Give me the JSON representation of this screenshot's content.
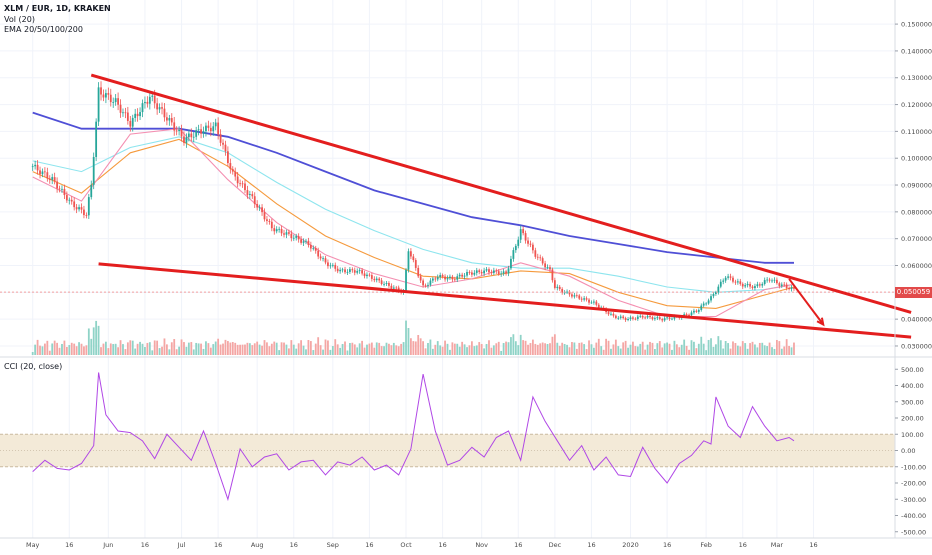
{
  "header": {
    "symbol": "XLM / EUR, 1D, KRAKEN",
    "volume_label": "Vol (20)",
    "ema_label": "EMA 20/50/100/200",
    "cci_label": "CCI (20, close)",
    "last_price": "0.050059"
  },
  "colors": {
    "up": "#26a69a",
    "down": "#ef5350",
    "trendline": "#e31e1e",
    "ema20": "#f48fb1",
    "ema50": "#f59a3d",
    "ema100": "#8ee5ee",
    "ema200": "#4f4fd6",
    "cci": "#b047e6",
    "band": "#f3ead8",
    "grid": "#f0f3fa",
    "text": "#4a4a4a"
  },
  "chart_data": [
    {
      "type": "line",
      "title": "XLM / EUR, 1D, KRAKEN",
      "x_ticks": [
        "May",
        "16",
        "Jun",
        "16",
        "Jul",
        "16",
        "Aug",
        "16",
        "Sep",
        "16",
        "Oct",
        "16",
        "Nov",
        "16",
        "Dec",
        "16",
        "2020",
        "16",
        "Feb",
        "16",
        "Mar",
        "16"
      ],
      "y_ticks": [
        "0.150000",
        "0.140000",
        "0.130000",
        "0.120000",
        "0.110000",
        "0.100000",
        "0.090000",
        "0.080000",
        "0.070000",
        "0.060000",
        "0.050000",
        "0.040000",
        "0.030000"
      ],
      "ylim": [
        0.0285,
        0.156
      ],
      "x_index_domain": [
        0,
        320
      ],
      "series": [
        {
          "name": "Close",
          "x": [
            0,
            8,
            16,
            22,
            24,
            27,
            34,
            40,
            48,
            55,
            62,
            68,
            75,
            82,
            90,
            98,
            106,
            113,
            120,
            126,
            133,
            140,
            147,
            152,
            154,
            160,
            166,
            172,
            178,
            186,
            194,
            200,
            206,
            212,
            214,
            218,
            224,
            230,
            238,
            244,
            250,
            258,
            266,
            272,
            278,
            284,
            290,
            296,
            302,
            306,
            312
          ],
          "y": [
            0.097,
            0.092,
            0.083,
            0.079,
            0.09,
            0.125,
            0.121,
            0.113,
            0.123,
            0.115,
            0.107,
            0.11,
            0.112,
            0.094,
            0.085,
            0.074,
            0.071,
            0.068,
            0.061,
            0.058,
            0.058,
            0.055,
            0.052,
            0.05,
            0.066,
            0.052,
            0.056,
            0.055,
            0.057,
            0.058,
            0.057,
            0.073,
            0.064,
            0.058,
            0.052,
            0.05,
            0.048,
            0.046,
            0.041,
            0.04,
            0.041,
            0.04,
            0.041,
            0.043,
            0.048,
            0.056,
            0.053,
            0.052,
            0.055,
            0.053,
            0.051
          ]
        },
        {
          "name": "EMA 200",
          "x": [
            0,
            20,
            40,
            60,
            80,
            100,
            120,
            140,
            160,
            180,
            200,
            220,
            240,
            260,
            280,
            300,
            312
          ],
          "y": [
            0.117,
            0.111,
            0.111,
            0.111,
            0.108,
            0.102,
            0.095,
            0.088,
            0.083,
            0.078,
            0.075,
            0.071,
            0.068,
            0.065,
            0.063,
            0.061,
            0.061
          ]
        },
        {
          "name": "EMA 100",
          "x": [
            0,
            20,
            40,
            60,
            80,
            100,
            120,
            140,
            160,
            180,
            200,
            220,
            240,
            260,
            280,
            300,
            312
          ],
          "y": [
            0.099,
            0.095,
            0.104,
            0.108,
            0.102,
            0.091,
            0.081,
            0.073,
            0.066,
            0.061,
            0.059,
            0.059,
            0.056,
            0.052,
            0.05,
            0.051,
            0.053
          ]
        },
        {
          "name": "EMA 50",
          "x": [
            0,
            20,
            40,
            60,
            80,
            100,
            120,
            140,
            160,
            180,
            200,
            220,
            240,
            260,
            280,
            300,
            312
          ],
          "y": [
            0.095,
            0.087,
            0.102,
            0.107,
            0.097,
            0.083,
            0.071,
            0.063,
            0.056,
            0.055,
            0.058,
            0.057,
            0.05,
            0.045,
            0.044,
            0.049,
            0.052
          ]
        },
        {
          "name": "EMA 20",
          "x": [
            0,
            20,
            40,
            60,
            80,
            100,
            120,
            140,
            160,
            180,
            200,
            220,
            240,
            260,
            280,
            300,
            312
          ],
          "y": [
            0.093,
            0.084,
            0.109,
            0.111,
            0.092,
            0.076,
            0.064,
            0.057,
            0.052,
            0.055,
            0.061,
            0.056,
            0.047,
            0.041,
            0.041,
            0.051,
            0.053
          ]
        }
      ],
      "trendlines": [
        {
          "name": "Upper trendline",
          "x": [
            24,
            360
          ],
          "y": [
            0.131,
            0.0425
          ]
        },
        {
          "name": "Lower trendline",
          "x": [
            27,
            360
          ],
          "y": [
            0.0606,
            0.0333
          ]
        },
        {
          "name": "Projection arrow",
          "x": [
            310,
            324
          ],
          "y": [
            0.055,
            0.038
          ]
        }
      ],
      "annotations": [
        {
          "label": "0.050059",
          "y": 0.050059
        }
      ]
    },
    {
      "type": "line",
      "title": "CCI (20, close)",
      "y_ticks": [
        "500.00",
        "400.00",
        "300.00",
        "200.00",
        "100.00",
        "0.00",
        "-100.00",
        "-200.00",
        "-300.00",
        "-400.00",
        "-500.00"
      ],
      "ylim": [
        -520,
        520
      ],
      "band": [
        -100,
        100
      ],
      "series": [
        {
          "name": "CCI",
          "x": [
            0,
            5,
            10,
            15,
            20,
            25,
            27,
            30,
            35,
            40,
            45,
            50,
            55,
            60,
            65,
            70,
            75,
            80,
            85,
            90,
            95,
            100,
            105,
            110,
            115,
            120,
            125,
            130,
            135,
            140,
            145,
            150,
            155,
            160,
            165,
            170,
            175,
            180,
            185,
            190,
            195,
            200,
            205,
            210,
            215,
            220,
            225,
            230,
            235,
            240,
            245,
            250,
            255,
            260,
            265,
            270,
            275,
            278,
            280,
            285,
            290,
            295,
            300,
            305,
            310,
            312
          ],
          "y": [
            -130,
            -60,
            -110,
            -120,
            -80,
            30,
            480,
            220,
            120,
            110,
            60,
            -50,
            100,
            20,
            -60,
            120,
            -80,
            -300,
            10,
            -100,
            -40,
            -20,
            -120,
            -70,
            -60,
            -150,
            -70,
            -90,
            -40,
            -120,
            -90,
            -150,
            10,
            470,
            120,
            -90,
            -60,
            20,
            -40,
            80,
            120,
            -60,
            330,
            180,
            60,
            -60,
            30,
            -120,
            -40,
            -150,
            -160,
            20,
            -110,
            -200,
            -80,
            -30,
            60,
            40,
            330,
            150,
            80,
            270,
            150,
            60,
            80,
            60
          ]
        }
      ]
    }
  ]
}
